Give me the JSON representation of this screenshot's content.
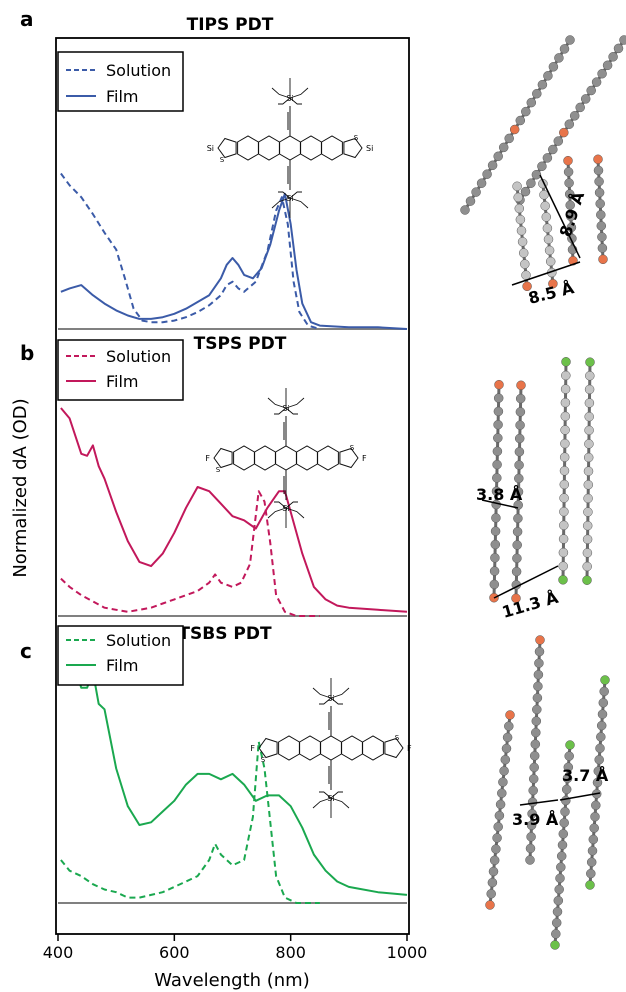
{
  "figure": {
    "ylabel": "Normalized dA (OD)",
    "xlabel": "Wavelength (nm)"
  },
  "chart_data": [
    {
      "type": "line",
      "panel": "a",
      "title": "TIPS PDT",
      "xlabel": "Wavelength (nm)",
      "ylabel": "Normalized dA (OD)",
      "xlim": [
        400,
        1000
      ],
      "x_ticks": [
        "400",
        "600",
        "800",
        "1000"
      ],
      "legend_position": "top-left",
      "series": [
        {
          "name": "Solution",
          "style": "dashed",
          "color": "#3b5ba8",
          "x": [
            405,
            420,
            440,
            460,
            480,
            500,
            515,
            530,
            545,
            560,
            580,
            600,
            620,
            640,
            660,
            680,
            690,
            700,
            710,
            720,
            740,
            760,
            775,
            785,
            795,
            805,
            815,
            830,
            850
          ],
          "y": [
            0.92,
            0.85,
            0.78,
            0.68,
            0.57,
            0.47,
            0.3,
            0.12,
            0.05,
            0.04,
            0.04,
            0.05,
            0.07,
            0.1,
            0.14,
            0.2,
            0.26,
            0.28,
            0.24,
            0.22,
            0.28,
            0.46,
            0.7,
            0.78,
            0.62,
            0.28,
            0.1,
            0.02,
            0.0
          ]
        },
        {
          "name": "Film",
          "style": "solid",
          "color": "#3b5ba8",
          "x": [
            405,
            420,
            440,
            460,
            480,
            500,
            520,
            540,
            560,
            580,
            600,
            620,
            640,
            660,
            680,
            690,
            700,
            710,
            720,
            735,
            750,
            765,
            780,
            790,
            800,
            810,
            820,
            835,
            850,
            900,
            950,
            1000
          ],
          "y": [
            0.22,
            0.24,
            0.26,
            0.2,
            0.15,
            0.11,
            0.08,
            0.06,
            0.06,
            0.07,
            0.09,
            0.12,
            0.16,
            0.2,
            0.3,
            0.38,
            0.42,
            0.38,
            0.32,
            0.3,
            0.36,
            0.5,
            0.7,
            0.8,
            0.62,
            0.35,
            0.15,
            0.04,
            0.02,
            0.01,
            0.01,
            0.0
          ]
        }
      ]
    },
    {
      "type": "line",
      "panel": "b",
      "title": "TSPS PDT",
      "xlabel": "Wavelength (nm)",
      "ylabel": "Normalized dA (OD)",
      "xlim": [
        400,
        1000
      ],
      "x_ticks": [
        "400",
        "600",
        "800",
        "1000"
      ],
      "legend_position": "top-left",
      "series": [
        {
          "name": "Solution",
          "style": "dashed",
          "color": "#c2185b",
          "x": [
            405,
            420,
            440,
            460,
            480,
            500,
            520,
            540,
            560,
            580,
            600,
            620,
            640,
            660,
            670,
            680,
            700,
            715,
            730,
            745,
            755,
            765,
            775,
            790,
            810,
            850
          ],
          "y": [
            0.18,
            0.14,
            0.1,
            0.07,
            0.04,
            0.03,
            0.02,
            0.03,
            0.04,
            0.06,
            0.08,
            0.1,
            0.12,
            0.16,
            0.2,
            0.16,
            0.14,
            0.16,
            0.25,
            0.6,
            0.55,
            0.35,
            0.1,
            0.02,
            0.0,
            0.0
          ]
        },
        {
          "name": "Film",
          "style": "solid",
          "color": "#c2185b",
          "x": [
            405,
            420,
            440,
            450,
            460,
            470,
            480,
            500,
            520,
            540,
            560,
            580,
            600,
            620,
            640,
            660,
            680,
            700,
            720,
            740,
            760,
            780,
            790,
            800,
            820,
            840,
            860,
            880,
            900,
            950,
            1000
          ],
          "y": [
            1.0,
            0.95,
            0.78,
            0.77,
            0.82,
            0.72,
            0.66,
            0.5,
            0.36,
            0.26,
            0.24,
            0.3,
            0.4,
            0.52,
            0.62,
            0.6,
            0.54,
            0.48,
            0.46,
            0.42,
            0.52,
            0.6,
            0.6,
            0.5,
            0.3,
            0.14,
            0.08,
            0.05,
            0.04,
            0.03,
            0.02
          ]
        }
      ]
    },
    {
      "type": "line",
      "panel": "c",
      "title": "TSBS PDT",
      "xlabel": "Wavelength (nm)",
      "ylabel": "Normalized dA (OD)",
      "xlim": [
        400,
        1000
      ],
      "x_ticks": [
        "400",
        "600",
        "800",
        "1000"
      ],
      "legend_position": "top-left",
      "series": [
        {
          "name": "Solution",
          "style": "dashed",
          "color": "#1aa84f",
          "x": [
            405,
            420,
            440,
            460,
            480,
            500,
            520,
            540,
            560,
            580,
            600,
            620,
            640,
            660,
            670,
            680,
            700,
            720,
            735,
            745,
            755,
            765,
            775,
            790,
            810,
            850
          ],
          "y": [
            0.16,
            0.12,
            0.1,
            0.07,
            0.05,
            0.04,
            0.02,
            0.02,
            0.03,
            0.04,
            0.06,
            0.08,
            0.1,
            0.16,
            0.22,
            0.18,
            0.14,
            0.16,
            0.32,
            0.6,
            0.5,
            0.3,
            0.1,
            0.02,
            0.0,
            0.0
          ]
        },
        {
          "name": "Film",
          "style": "solid",
          "color": "#1aa84f",
          "x": [
            405,
            420,
            440,
            450,
            460,
            470,
            480,
            500,
            520,
            540,
            560,
            580,
            600,
            620,
            640,
            660,
            680,
            700,
            720,
            740,
            760,
            780,
            800,
            820,
            840,
            860,
            880,
            900,
            950,
            1000
          ],
          "y": [
            1.0,
            0.93,
            0.8,
            0.8,
            0.86,
            0.74,
            0.72,
            0.5,
            0.36,
            0.29,
            0.3,
            0.34,
            0.38,
            0.44,
            0.48,
            0.48,
            0.46,
            0.48,
            0.44,
            0.38,
            0.4,
            0.4,
            0.36,
            0.28,
            0.18,
            0.12,
            0.08,
            0.06,
            0.04,
            0.03
          ]
        }
      ]
    }
  ],
  "crystal": [
    {
      "panel": "a",
      "distances": [
        "8.9 Å",
        "8.5 Å"
      ]
    },
    {
      "panel": "b",
      "distances": [
        "3.8 Å",
        "11.3 Å"
      ]
    },
    {
      "panel": "c",
      "distances": [
        "3.7 Å",
        "3.9 Å"
      ]
    }
  ],
  "molecules": [
    {
      "panel": "a",
      "atom_labels": [
        "Si",
        "Si",
        "Si",
        "Si",
        "S",
        "S"
      ]
    },
    {
      "panel": "b",
      "atom_labels": [
        "Si",
        "Si",
        "F",
        "F",
        "S",
        "S"
      ]
    },
    {
      "panel": "c",
      "atom_labels": [
        "Si",
        "Si",
        "F",
        "F",
        "S",
        "S"
      ]
    }
  ],
  "colors": {
    "tips": "#3b5ba8",
    "tsps": "#c2185b",
    "tsbs": "#1aa84f",
    "baseline": "#808080",
    "atom_c": "#8f8f8f",
    "atom_s": "#e8744a",
    "atom_f": "#6cc04a"
  }
}
